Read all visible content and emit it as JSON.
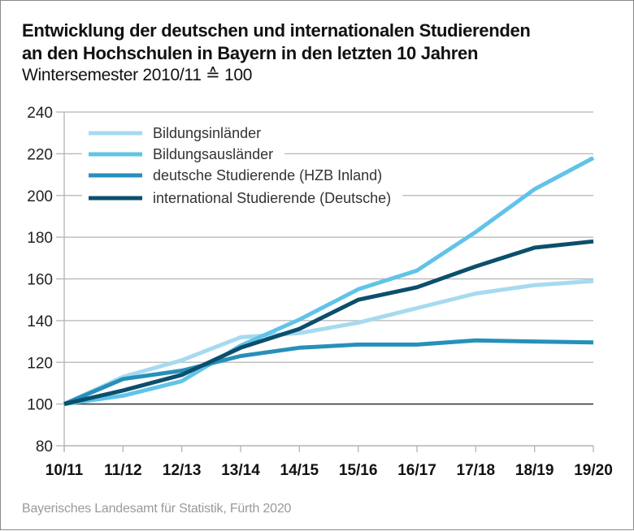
{
  "header": {
    "title_line1": "Entwicklung der deutschen und internationalen Studierenden",
    "title_line2": "an den Hochschulen in Bayern in den letzten 10 Jahren",
    "subtitle": "Wintersemester 2010/11 ≙ 100"
  },
  "footer": {
    "source": "Bayerisches Landesamt für Statistik, Fürth 2020"
  },
  "chart_data": {
    "type": "line",
    "title": "Entwicklung der deutschen und internationalen Studierenden an den Hochschulen in Bayern in den letzten 10 Jahren",
    "subtitle": "Wintersemester 2010/11 ≙ 100",
    "xlabel": "",
    "ylabel": "",
    "categories": [
      "10/11",
      "11/12",
      "12/13",
      "13/14",
      "14/15",
      "15/16",
      "16/17",
      "17/18",
      "18/19",
      "19/20"
    ],
    "ylim": [
      80,
      240
    ],
    "yticks": [
      80,
      100,
      120,
      140,
      160,
      180,
      200,
      220,
      240
    ],
    "grid": true,
    "reference_line": 100,
    "legend_position": "top-left",
    "series": [
      {
        "name": "Bildungsinländer",
        "color": "#A6DAF0",
        "values": [
          100,
          113,
          121,
          132,
          134,
          139,
          146,
          153,
          157,
          159
        ]
      },
      {
        "name": "Bildungsausländer",
        "color": "#61C3E8",
        "values": [
          100,
          104,
          111,
          128,
          140.5,
          155,
          164,
          182.5,
          203,
          218
        ]
      },
      {
        "name": "deutsche Studierende (HZB Inland)",
        "color": "#2690BA",
        "values": [
          100,
          112,
          116,
          123,
          127,
          128.5,
          128.5,
          130.5,
          130,
          129.5
        ]
      },
      {
        "name": "international Studierende (Deutsche)",
        "color": "#0B4F6C",
        "values": [
          100,
          106.5,
          114,
          127,
          136,
          150,
          156,
          166,
          175,
          178
        ]
      }
    ]
  }
}
